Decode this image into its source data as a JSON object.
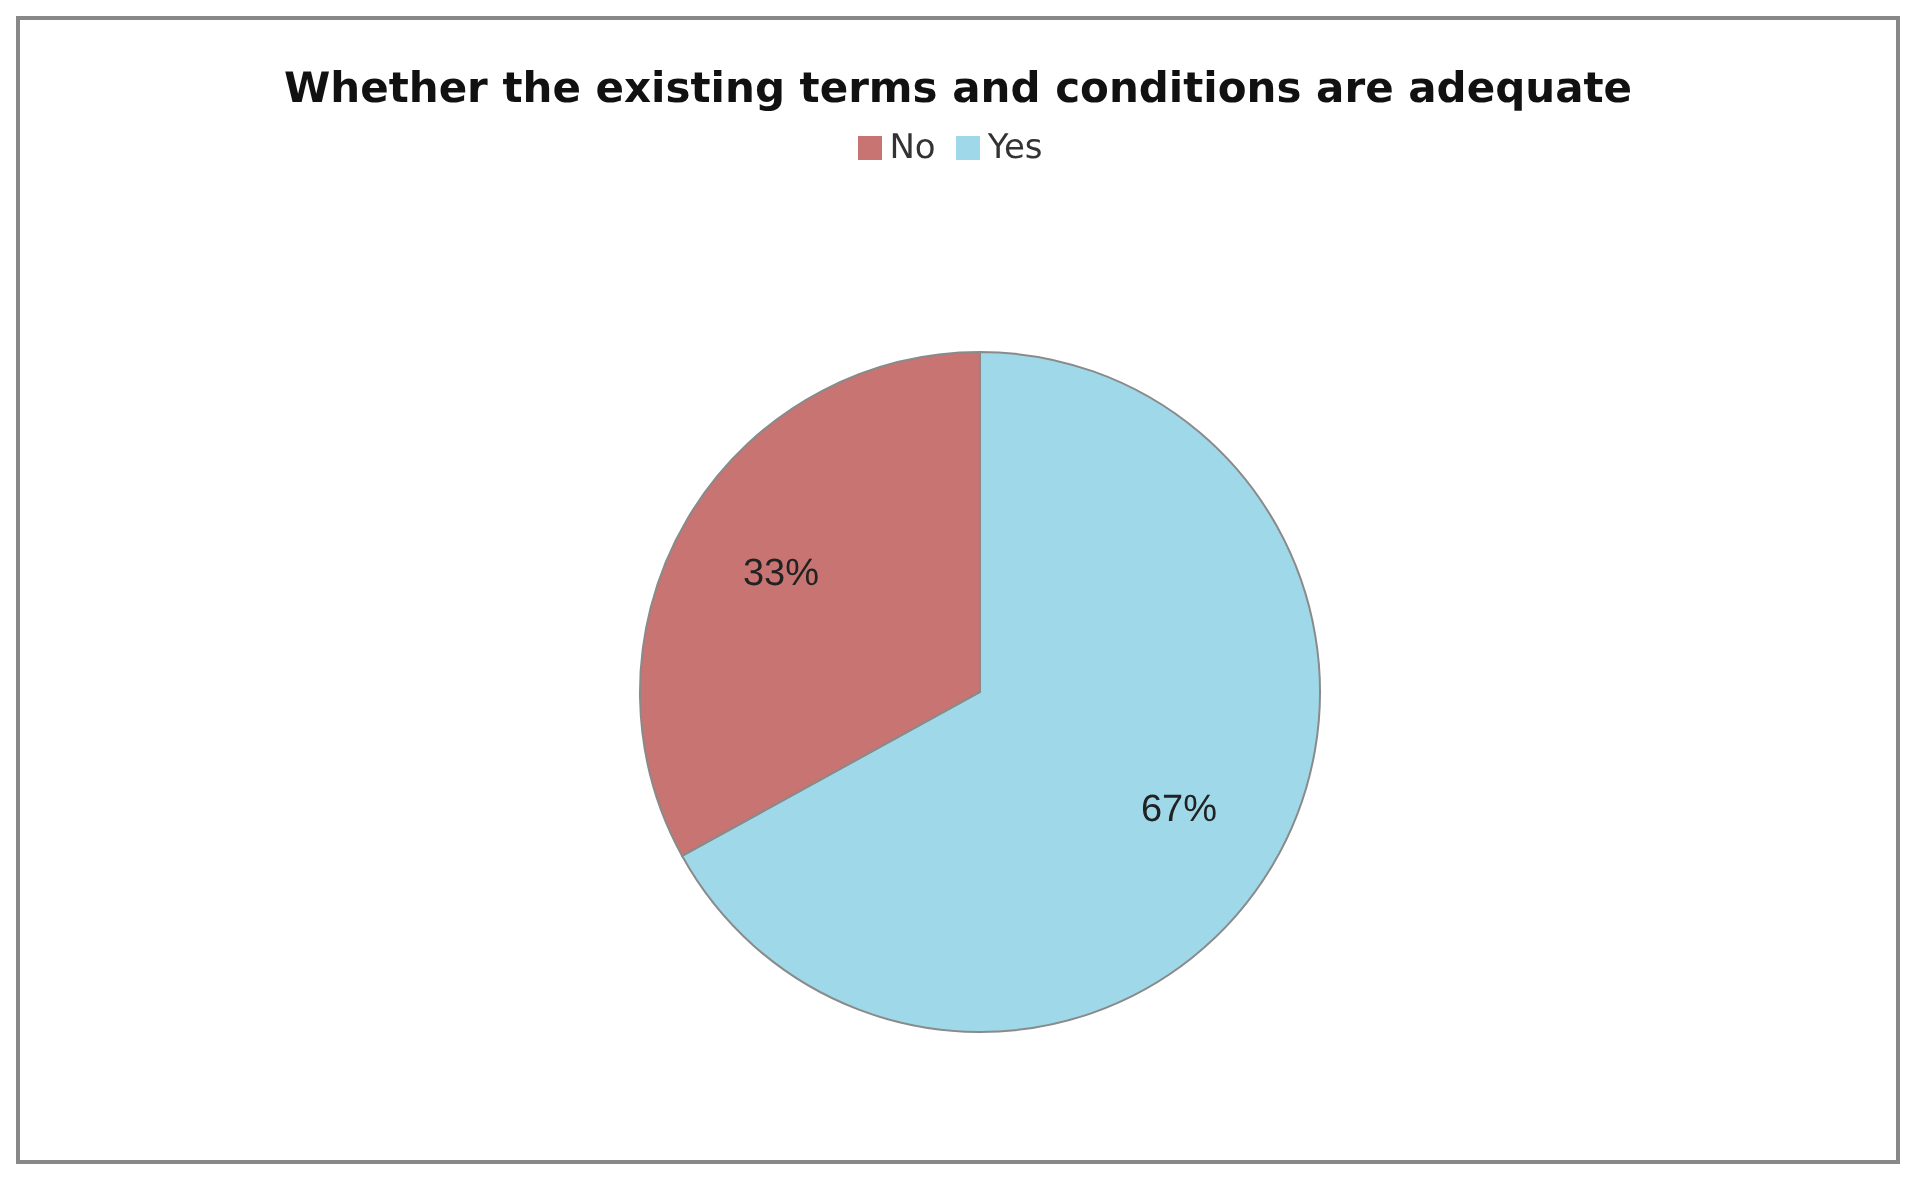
{
  "chart_data": {
    "type": "pie",
    "title": "Whether the existing terms and conditions are adequate",
    "categories": [
      "Yes",
      "No"
    ],
    "values": [
      67,
      33
    ],
    "value_labels": [
      "67%",
      "33%"
    ],
    "colors": [
      "#9fd9e9",
      "#c77472"
    ],
    "legend": "top"
  }
}
